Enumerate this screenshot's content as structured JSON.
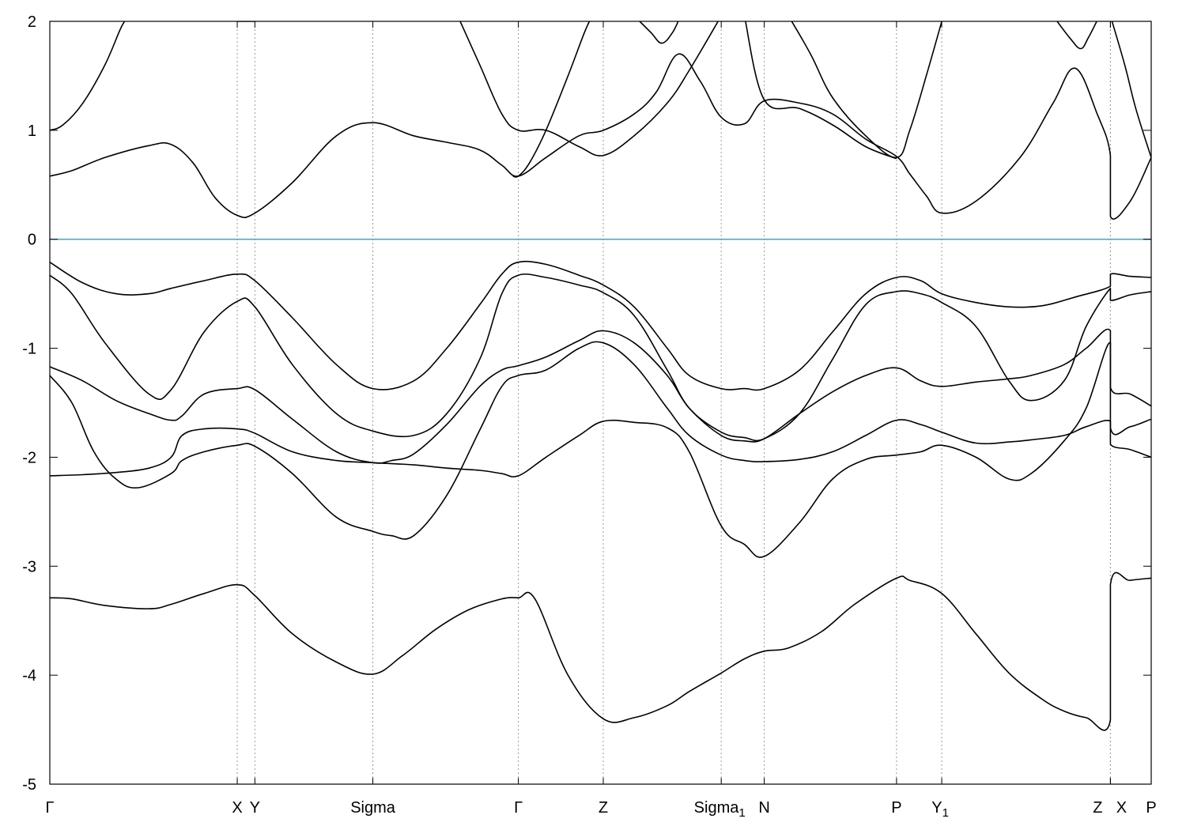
{
  "chart_data": {
    "type": "line",
    "title": "",
    "xlabel": "",
    "ylabel": "",
    "ylim": [
      -5,
      2
    ],
    "yticks": [
      2,
      1,
      0,
      -1,
      -2,
      -3,
      -4,
      -5
    ],
    "grid": false,
    "legend": "none",
    "fermi_level": {
      "value": 0,
      "color": "#4aa8c8"
    },
    "kpoints": [
      {
        "label": "Γ",
        "sub": "",
        "x": 0.0
      },
      {
        "label": "X",
        "sub": "",
        "x": 1.7
      },
      {
        "label": "Y",
        "sub": "",
        "x": 1.86
      },
      {
        "label": "Sigma",
        "sub": "",
        "x": 2.93
      },
      {
        "label": "Γ",
        "sub": "",
        "x": 4.25
      },
      {
        "label": "Z",
        "sub": "",
        "x": 5.02
      },
      {
        "label": "Sigma",
        "sub": "1",
        "x": 6.09
      },
      {
        "label": "N",
        "sub": "",
        "x": 6.48
      },
      {
        "label": "P",
        "sub": "",
        "x": 7.68
      },
      {
        "label": "Y",
        "sub": "1",
        "x": 8.09
      },
      {
        "label": "Z",
        "sub": "",
        "x": 9.62
      },
      {
        "label": "X",
        "sub": "",
        "x": 9.62
      },
      {
        "label": "P",
        "sub": "",
        "x": 9.99
      }
    ],
    "xlim": [
      0,
      9.99
    ],
    "series": [
      {
        "x": [
          0,
          0.2,
          0.5,
          0.9,
          1.1,
          1.4,
          1.7,
          1.86,
          2.2,
          2.6,
          2.93,
          3.2,
          3.5,
          3.8,
          4.1,
          4.25,
          4.4,
          4.7,
          5.02,
          5.3,
          5.6,
          5.8,
          6.09,
          6.3,
          6.48,
          6.7,
          7.0,
          7.3,
          7.68,
          7.8,
          8.09,
          8.4,
          8.7,
          9.0,
          9.2,
          9.4,
          9.62,
          9.62,
          9.8,
          9.99
        ],
        "y": [
          -3.29,
          -3.3,
          -3.36,
          -3.39,
          -3.35,
          -3.25,
          -3.17,
          -3.27,
          -3.62,
          -3.88,
          -3.99,
          -3.82,
          -3.58,
          -3.4,
          -3.3,
          -3.29,
          -3.3,
          -4.0,
          -4.4,
          -4.39,
          -4.28,
          -4.15,
          -3.98,
          -3.85,
          -3.78,
          -3.75,
          -3.6,
          -3.35,
          -3.11,
          -3.13,
          -3.25,
          -3.62,
          -3.98,
          -4.22,
          -4.33,
          -4.39,
          -4.41,
          -3.17,
          -3.13,
          -3.11
        ]
      },
      {
        "x": [
          0,
          0.2,
          0.4,
          0.6,
          0.8,
          1.1,
          1.2,
          1.4,
          1.7,
          1.86,
          2.2,
          2.6,
          2.93,
          3.1,
          3.3,
          3.6,
          3.9,
          4.1,
          4.25,
          4.5,
          4.8,
          5.02,
          5.3,
          5.6,
          5.8,
          6.09,
          6.3,
          6.48,
          6.8,
          7.1,
          7.4,
          7.68,
          7.9,
          8.09,
          8.4,
          8.7,
          8.9,
          9.2,
          9.4,
          9.62,
          9.62,
          9.8,
          9.99
        ],
        "y": [
          -1.25,
          -1.5,
          -1.95,
          -2.2,
          -2.28,
          -2.15,
          -2.03,
          -1.95,
          -1.89,
          -1.9,
          -2.15,
          -2.55,
          -2.68,
          -2.72,
          -2.72,
          -2.35,
          -1.75,
          -1.35,
          -1.25,
          -1.2,
          -1.0,
          -0.95,
          -1.15,
          -1.55,
          -1.8,
          -1.98,
          -2.03,
          -2.04,
          -2.02,
          -1.95,
          -1.8,
          -1.66,
          -1.7,
          -1.77,
          -1.87,
          -1.86,
          -1.84,
          -1.8,
          -1.72,
          -1.67,
          -1.88,
          -1.93,
          -2.0
        ]
      },
      {
        "x": [
          0,
          0.3,
          0.6,
          0.9,
          1.1,
          1.2,
          1.4,
          1.7,
          1.86,
          2.2,
          2.6,
          2.93,
          3.3,
          3.6,
          3.9,
          4.1,
          4.25,
          4.5,
          4.8,
          5.02,
          5.3,
          5.6,
          5.8,
          6.09,
          6.3,
          6.48,
          6.8,
          7.1,
          7.4,
          7.68,
          7.9,
          8.09,
          8.4,
          8.7,
          8.9,
          9.2,
          9.4,
          9.62,
          9.62,
          9.8,
          9.99
        ],
        "y": [
          -2.17,
          -2.16,
          -2.14,
          -2.1,
          -2.0,
          -1.8,
          -1.74,
          -1.74,
          -1.78,
          -1.95,
          -2.03,
          -2.05,
          -2.07,
          -2.1,
          -2.12,
          -2.15,
          -2.17,
          -2.0,
          -1.8,
          -1.67,
          -1.68,
          -1.73,
          -1.95,
          -2.63,
          -2.8,
          -2.91,
          -2.6,
          -2.2,
          -2.02,
          -1.98,
          -1.95,
          -1.89,
          -2.0,
          -2.2,
          -2.15,
          -1.85,
          -1.55,
          -0.95,
          -1.73,
          -1.72,
          -1.65
        ]
      },
      {
        "x": [
          0,
          0.3,
          0.6,
          0.9,
          1.1,
          1.2,
          1.4,
          1.7,
          1.86,
          2.2,
          2.6,
          2.93,
          3.1,
          3.3,
          3.6,
          3.9,
          4.1,
          4.25,
          4.5,
          4.8,
          5.02,
          5.3,
          5.6,
          5.8,
          6.09,
          6.3,
          6.48,
          6.8,
          7.1,
          7.4,
          7.68,
          7.9,
          8.09,
          8.4,
          8.7,
          8.9,
          9.2,
          9.4,
          9.62,
          9.62,
          9.8,
          9.99
        ],
        "y": [
          -1.17,
          -1.3,
          -1.48,
          -1.6,
          -1.66,
          -1.62,
          -1.42,
          -1.37,
          -1.38,
          -1.65,
          -1.95,
          -2.05,
          -2.03,
          -1.97,
          -1.7,
          -1.35,
          -1.2,
          -1.16,
          -1.08,
          -0.93,
          -0.84,
          -0.95,
          -1.25,
          -1.55,
          -1.8,
          -1.85,
          -1.83,
          -1.6,
          -1.4,
          -1.25,
          -1.18,
          -1.3,
          -1.35,
          -1.31,
          -1.28,
          -1.25,
          -1.15,
          -1.0,
          -0.84,
          -1.36,
          -1.42,
          -1.53
        ]
      },
      {
        "x": [
          0,
          0.2,
          0.5,
          0.9,
          1.1,
          1.4,
          1.7,
          1.86,
          2.2,
          2.6,
          2.93,
          3.3,
          3.6,
          3.9,
          4.1,
          4.25,
          4.5,
          4.8,
          5.02,
          5.3,
          5.6,
          5.8,
          6.09,
          6.3,
          6.48,
          6.8,
          7.1,
          7.4,
          7.68,
          7.9,
          8.09,
          8.4,
          8.7,
          8.9,
          9.2,
          9.4,
          9.62,
          9.62,
          9.8,
          9.99
        ],
        "y": [
          -0.33,
          -0.5,
          -0.95,
          -1.42,
          -1.38,
          -0.85,
          -0.57,
          -0.62,
          -1.15,
          -1.6,
          -1.76,
          -1.8,
          -1.6,
          -1.1,
          -0.5,
          -0.33,
          -0.35,
          -0.42,
          -0.49,
          -0.7,
          -1.2,
          -1.55,
          -1.77,
          -1.82,
          -1.83,
          -1.6,
          -1.1,
          -0.6,
          -0.48,
          -0.5,
          -0.58,
          -0.8,
          -1.3,
          -1.48,
          -1.3,
          -0.8,
          -0.45,
          -0.56,
          -0.51,
          -0.48
        ]
      },
      {
        "x": [
          0,
          0.3,
          0.6,
          0.9,
          1.1,
          1.4,
          1.7,
          1.86,
          2.2,
          2.6,
          2.93,
          3.3,
          3.6,
          3.9,
          4.1,
          4.25,
          4.5,
          4.8,
          5.02,
          5.3,
          5.6,
          5.8,
          6.09,
          6.3,
          6.48,
          6.8,
          7.1,
          7.4,
          7.68,
          7.9,
          8.09,
          8.4,
          8.7,
          9.0,
          9.3,
          9.62,
          9.62,
          9.8,
          9.99
        ],
        "y": [
          -0.21,
          -0.4,
          -0.5,
          -0.5,
          -0.45,
          -0.38,
          -0.32,
          -0.38,
          -0.72,
          -1.15,
          -1.37,
          -1.3,
          -1.0,
          -0.6,
          -0.32,
          -0.21,
          -0.23,
          -0.33,
          -0.42,
          -0.62,
          -1.0,
          -1.25,
          -1.37,
          -1.37,
          -1.37,
          -1.2,
          -0.85,
          -0.5,
          -0.35,
          -0.38,
          -0.5,
          -0.58,
          -0.62,
          -0.61,
          -0.53,
          -0.43,
          -0.32,
          -0.34,
          -0.35
        ]
      },
      {
        "x": [
          0,
          0.2,
          0.5,
          0.9,
          1.1,
          1.3,
          1.5,
          1.7,
          1.86,
          2.2,
          2.6,
          2.93,
          3.3,
          3.6,
          3.9,
          4.1,
          4.25,
          4.5,
          4.8,
          5.02,
          5.3,
          5.5,
          5.7,
          5.9,
          6.09,
          6.3,
          6.48,
          6.8,
          7.1,
          7.4,
          7.68,
          7.8,
          7.95,
          8.09,
          8.4,
          8.8,
          9.1,
          9.3,
          9.5,
          9.62,
          9.62,
          9.8,
          9.99
        ],
        "y": [
          0.58,
          0.63,
          0.75,
          0.86,
          0.87,
          0.7,
          0.38,
          0.22,
          0.24,
          0.52,
          0.95,
          1.07,
          0.95,
          0.89,
          0.82,
          0.68,
          0.58,
          0.75,
          0.95,
          1.0,
          1.15,
          1.35,
          1.7,
          1.45,
          1.12,
          1.06,
          1.27,
          1.25,
          1.15,
          0.92,
          0.76,
          0.6,
          0.4,
          0.24,
          0.35,
          0.75,
          1.25,
          1.57,
          1.15,
          0.77,
          0.21,
          0.35,
          0.75
        ]
      },
      {
        "x": [
          0,
          0.12,
          0.3,
          0.5,
          0.65,
          0.72
        ],
        "y": [
          1.0,
          1.05,
          1.25,
          1.6,
          1.95,
          2.05
        ]
      },
      {
        "x": [
          3.7,
          3.9,
          4.1,
          4.25,
          4.5,
          4.8,
          5.02,
          5.3,
          5.6,
          5.8,
          6.09
        ],
        "y": [
          2.05,
          1.6,
          1.15,
          1.0,
          1.0,
          0.85,
          0.77,
          0.95,
          1.25,
          1.55,
          2.05
        ]
      },
      {
        "x": [
          4.2,
          4.25,
          4.35,
          4.5,
          4.7,
          4.85,
          4.92
        ],
        "y": [
          0.58,
          0.58,
          0.7,
          1.0,
          1.5,
          1.9,
          2.05
        ]
      },
      {
        "x": [
          5.3,
          5.45,
          5.55,
          5.65,
          5.72
        ],
        "y": [
          2.05,
          1.9,
          1.8,
          1.9,
          2.05
        ]
      },
      {
        "x": [
          6.7,
          6.9,
          7.1,
          7.4,
          7.68,
          7.8,
          7.95,
          8.09
        ],
        "y": [
          2.05,
          1.7,
          1.3,
          0.95,
          0.75,
          1.0,
          1.5,
          2.0
        ]
      },
      {
        "x": [
          6.3,
          6.48,
          6.8,
          7.1,
          7.4,
          7.68
        ],
        "y": [
          2.05,
          1.28,
          1.2,
          1.05,
          0.85,
          0.74
        ]
      },
      {
        "x": [
          9.1,
          9.25,
          9.35,
          9.42,
          9.52
        ],
        "y": [
          2.05,
          1.85,
          1.75,
          1.85,
          2.05
        ]
      },
      {
        "x": [
          9.62,
          9.75,
          9.85,
          9.99
        ],
        "y": [
          2.05,
          1.6,
          1.2,
          0.75
        ]
      },
      {
        "x": [
          1.7,
          1.86
        ],
        "y": [
          2.0,
          2.0
        ]
      }
    ]
  }
}
